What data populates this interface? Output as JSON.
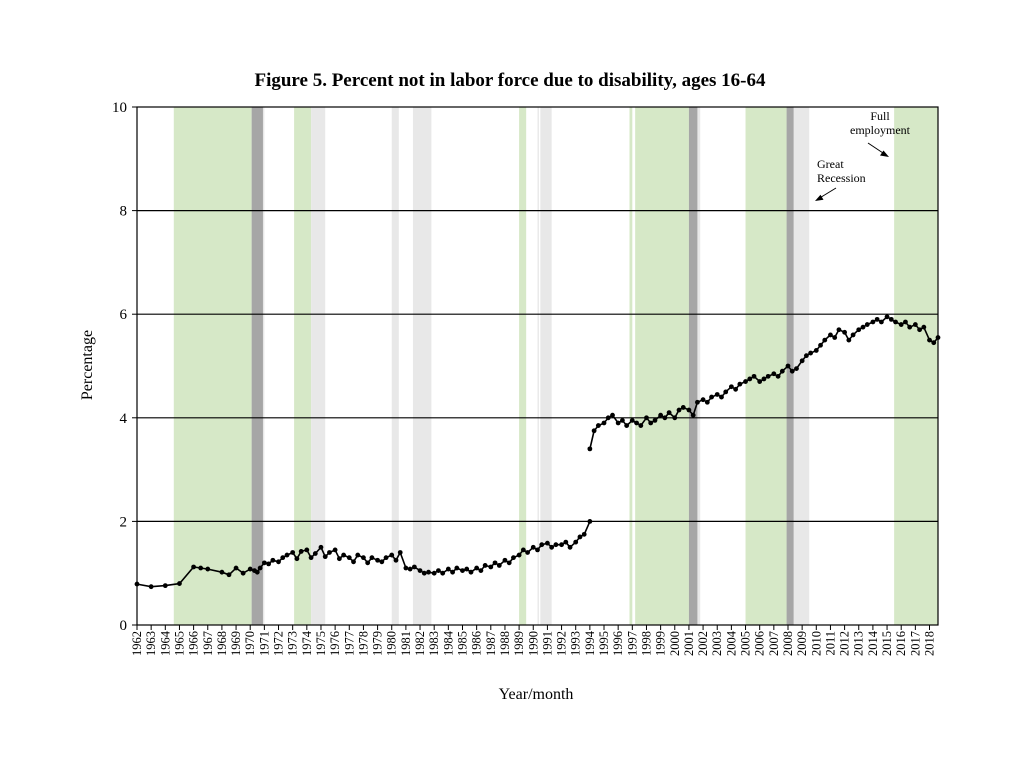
{
  "chart_data": {
    "type": "line",
    "title": "Figure 5. Percent not in labor force due to disability, ages 16-64",
    "xlabel": "Year/month",
    "ylabel": "Percentage",
    "ylim": [
      0,
      10
    ],
    "xlim": [
      1962,
      2018.6
    ],
    "yticks": [
      "0",
      "2",
      "4",
      "6",
      "8",
      "10"
    ],
    "grid": "horizontal",
    "xtick_labels": [
      "1962",
      "1963",
      "1964",
      "1965",
      "1966",
      "1967",
      "1968",
      "1969",
      "1970",
      "1971",
      "1972",
      "1973",
      "1974",
      "1975",
      "1976",
      "1977",
      "1978",
      "1979",
      "1980",
      "1981",
      "1982",
      "1983",
      "1984",
      "1985",
      "1986",
      "1987",
      "1988",
      "1989",
      "1990",
      "1991",
      "1992",
      "1993",
      "1994",
      "1995",
      "1996",
      "1997",
      "1998",
      "1999",
      "2000",
      "2001",
      "2002",
      "2003",
      "2004",
      "2005",
      "2006",
      "2007",
      "2008",
      "2009",
      "2010",
      "2011",
      "2012",
      "2013",
      "2014",
      "2015",
      "2016",
      "2017",
      "2018"
    ],
    "colors": {
      "full_employment": "#d6e8c7",
      "recession": "#a6a6a6",
      "post_recession": "#e8e8e8",
      "series": "#000000"
    },
    "shaded_periods": {
      "full_employment": [
        [
          1964.6,
          1970.1
        ],
        [
          1973.1,
          1974.3
        ],
        [
          1989.0,
          1989.5
        ],
        [
          1996.8,
          1997.0
        ],
        [
          1997.2,
          2001.0
        ],
        [
          2005.0,
          2007.9
        ],
        [
          2015.5,
          2018.6
        ]
      ],
      "recession": [
        [
          1970.1,
          1970.9
        ],
        [
          2001.0,
          2001.6
        ],
        [
          2007.9,
          2008.4
        ]
      ],
      "post_recession": [
        [
          1970.9,
          1971.0
        ],
        [
          1974.3,
          1975.3
        ],
        [
          1980.0,
          1980.5
        ],
        [
          1981.5,
          1982.8
        ],
        [
          1990.3,
          1990.4
        ],
        [
          1990.5,
          1991.3
        ],
        [
          2001.6,
          2001.8
        ],
        [
          2008.4,
          2009.5
        ]
      ]
    },
    "annotations": [
      {
        "lines": [
          "Full",
          "employment"
        ]
      },
      {
        "lines": [
          "Great",
          "Recession"
        ]
      }
    ],
    "series": [
      {
        "segments": [
          {
            "x": [
              1962,
              1963,
              1964,
              1965,
              1966,
              1966.5,
              1967,
              1968,
              1968.5,
              1969,
              1969.5,
              1970,
              1970.3,
              1970.5,
              1970.7,
              1971,
              1971.3,
              1971.6,
              1972,
              1972.3,
              1972.6,
              1973,
              1973.3,
              1973.6,
              1974,
              1974.3,
              1974.6,
              1975,
              1975.3,
              1975.6,
              1976,
              1976.3,
              1976.6,
              1977,
              1977.3,
              1977.6,
              1978,
              1978.3,
              1978.6,
              1979,
              1979.3,
              1979.6,
              1980,
              1980.3,
              1980.6,
              1981,
              1981.3,
              1981.6,
              1982,
              1982.3,
              1982.6,
              1983,
              1983.3,
              1983.6,
              1984,
              1984.3,
              1984.6,
              1985,
              1985.3,
              1985.6,
              1986,
              1986.3,
              1986.6,
              1987,
              1987.3,
              1987.6,
              1988,
              1988.3,
              1988.6,
              1989,
              1989.3,
              1989.6,
              1990,
              1990.3,
              1990.6,
              1991,
              1991.3,
              1991.6,
              1992,
              1992.3,
              1992.6,
              1993,
              1993.3,
              1993.6,
              1994
            ],
            "y": [
              0.79,
              0.74,
              0.76,
              0.8,
              1.12,
              1.1,
              1.08,
              1.02,
              0.97,
              1.1,
              1.0,
              1.08,
              1.05,
              1.02,
              1.1,
              1.2,
              1.18,
              1.25,
              1.22,
              1.3,
              1.35,
              1.4,
              1.28,
              1.42,
              1.45,
              1.3,
              1.38,
              1.5,
              1.32,
              1.4,
              1.45,
              1.28,
              1.35,
              1.3,
              1.22,
              1.35,
              1.3,
              1.2,
              1.3,
              1.25,
              1.22,
              1.3,
              1.35,
              1.25,
              1.4,
              1.1,
              1.08,
              1.12,
              1.05,
              1.0,
              1.02,
              1.0,
              1.05,
              1.0,
              1.08,
              1.02,
              1.1,
              1.05,
              1.08,
              1.02,
              1.1,
              1.05,
              1.15,
              1.12,
              1.2,
              1.15,
              1.25,
              1.2,
              1.3,
              1.35,
              1.45,
              1.4,
              1.5,
              1.45,
              1.55,
              1.58,
              1.5,
              1.55,
              1.55,
              1.6,
              1.5,
              1.6,
              1.7,
              1.75,
              2.0
            ]
          },
          {
            "x": [
              1994,
              1994.3,
              1994.6,
              1995,
              1995.3,
              1995.6,
              1996,
              1996.3,
              1996.6,
              1997,
              1997.3,
              1997.6,
              1998,
              1998.3,
              1998.6,
              1999,
              1999.3,
              1999.6,
              2000,
              2000.3,
              2000.6,
              2001,
              2001.3,
              2001.6,
              2002,
              2002.3,
              2002.6,
              2003,
              2003.3,
              2003.6,
              2004,
              2004.3,
              2004.6,
              2005,
              2005.3,
              2005.6,
              2006,
              2006.3,
              2006.6,
              2007,
              2007.3,
              2007.6,
              2008,
              2008.3,
              2008.6,
              2009,
              2009.3,
              2009.6,
              2010,
              2010.3,
              2010.6,
              2011,
              2011.3,
              2011.6,
              2012,
              2012.3,
              2012.6,
              2013,
              2013.3,
              2013.6,
              2014,
              2014.3,
              2014.6,
              2015,
              2015.3,
              2015.6,
              2016,
              2016.3,
              2016.6,
              2017,
              2017.3,
              2017.6,
              2018,
              2018.3,
              2018.6
            ],
            "y": [
              3.4,
              3.75,
              3.85,
              3.9,
              4.0,
              4.05,
              3.9,
              3.95,
              3.85,
              3.95,
              3.9,
              3.85,
              4.0,
              3.9,
              3.95,
              4.05,
              4.0,
              4.1,
              4.0,
              4.15,
              4.2,
              4.15,
              4.05,
              4.3,
              4.35,
              4.3,
              4.4,
              4.45,
              4.4,
              4.5,
              4.6,
              4.55,
              4.65,
              4.7,
              4.75,
              4.8,
              4.7,
              4.75,
              4.8,
              4.85,
              4.8,
              4.9,
              5.0,
              4.9,
              4.95,
              5.1,
              5.2,
              5.25,
              5.3,
              5.4,
              5.5,
              5.6,
              5.55,
              5.7,
              5.65,
              5.5,
              5.6,
              5.7,
              5.75,
              5.8,
              5.85,
              5.9,
              5.85,
              5.95,
              5.9,
              5.85,
              5.8,
              5.85,
              5.75,
              5.8,
              5.7,
              5.75,
              5.5,
              5.45,
              5.55
            ]
          }
        ]
      }
    ]
  }
}
